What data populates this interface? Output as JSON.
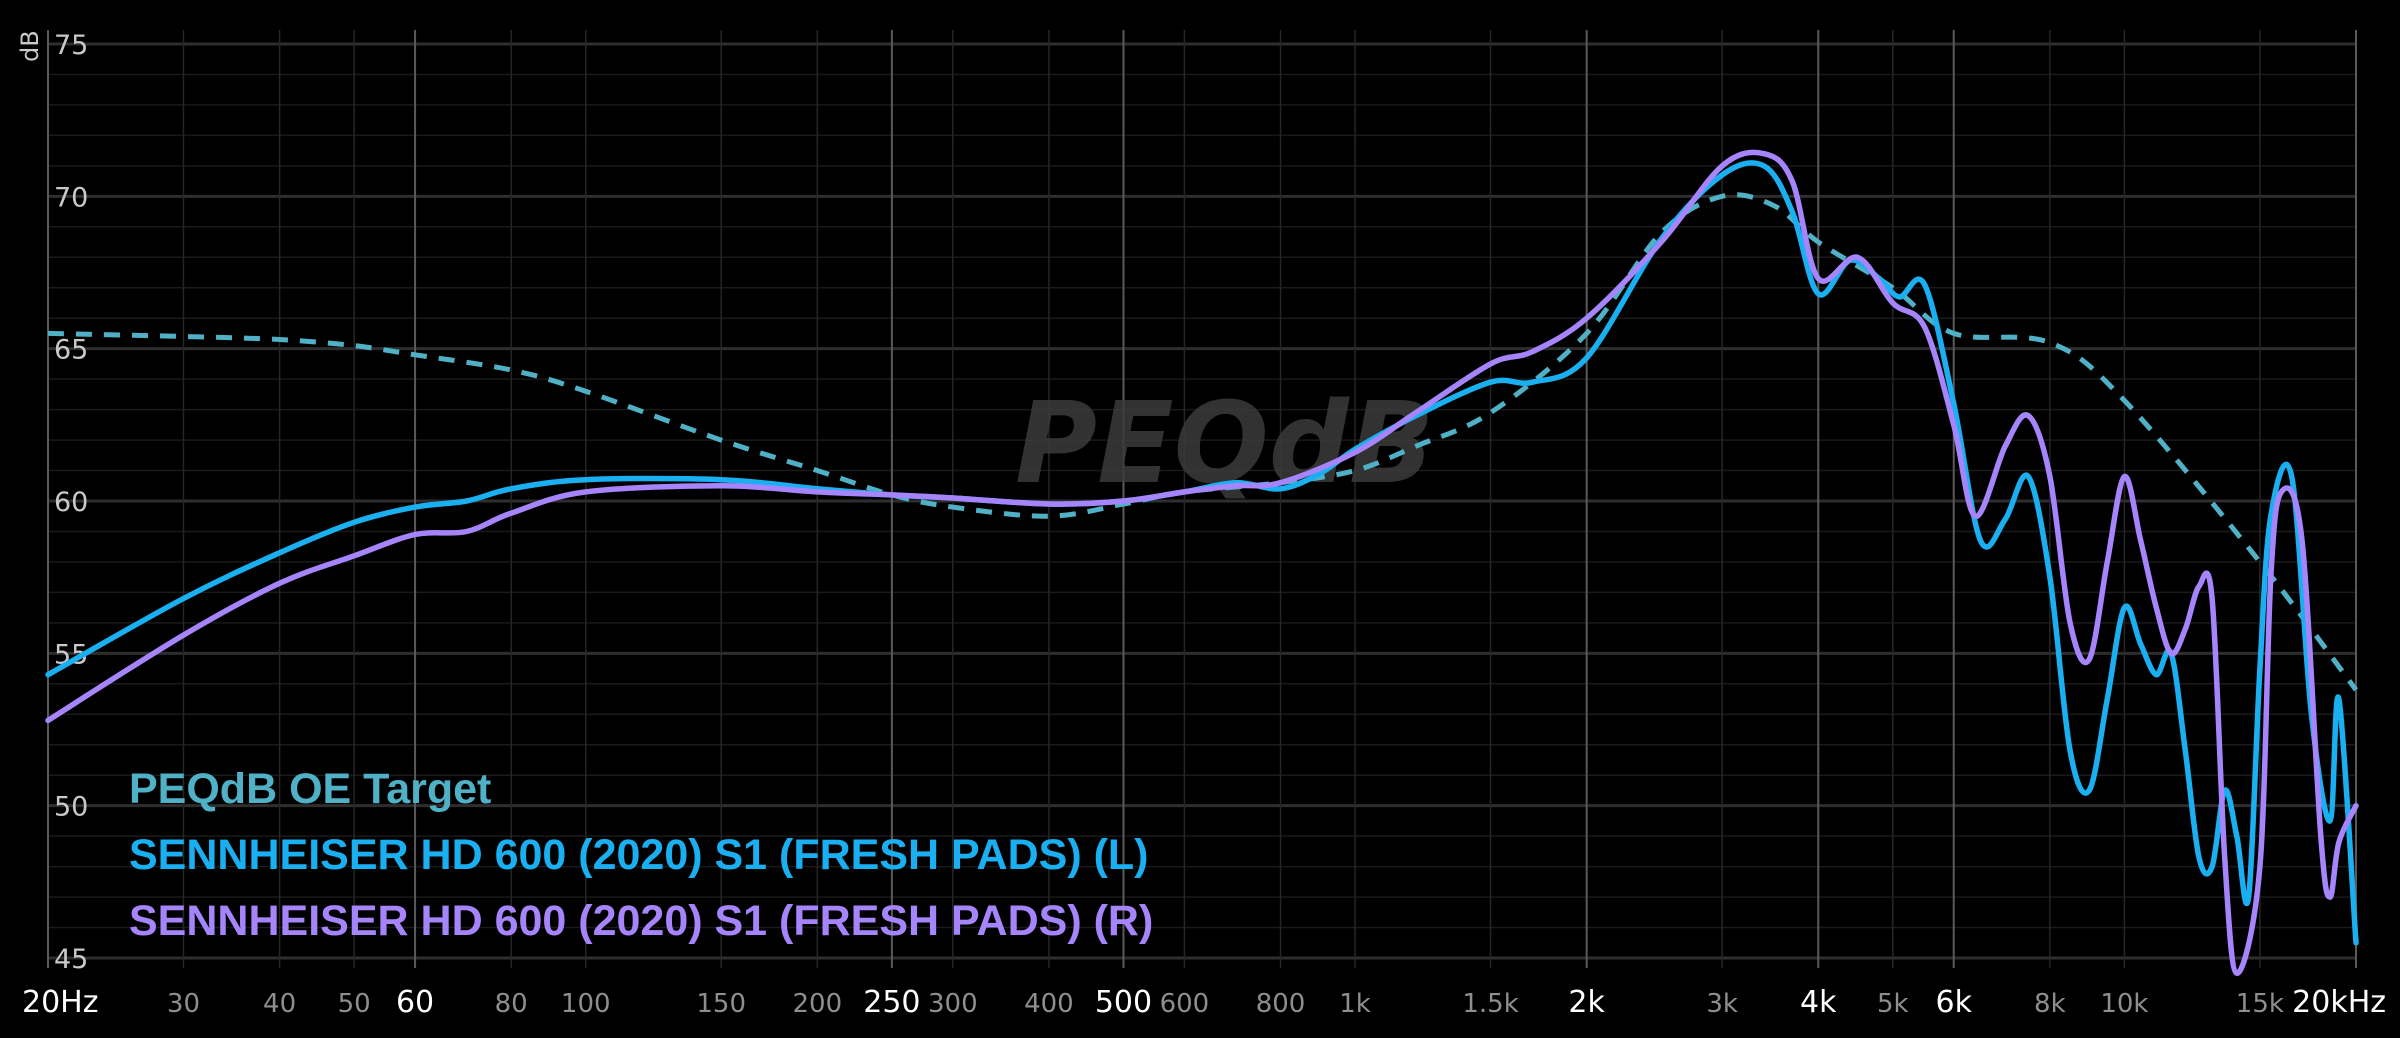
{
  "chart_data": {
    "type": "line",
    "title": "",
    "xlabel": "",
    "ylabel": "dB",
    "x_scale": "log",
    "xlim": [
      20,
      20000
    ],
    "ylim": [
      45,
      75
    ],
    "grid": true,
    "legend_position": "bottom-left",
    "watermark": "PEQdB",
    "y_ticks": [
      "45",
      "50",
      "55",
      "60",
      "65",
      "70",
      "75"
    ],
    "x_ticks": [
      {
        "value": 20,
        "label": "20Hz",
        "major": true
      },
      {
        "value": 30,
        "label": "30",
        "major": false
      },
      {
        "value": 40,
        "label": "40",
        "major": false
      },
      {
        "value": 50,
        "label": "50",
        "major": false
      },
      {
        "value": 60,
        "label": "60",
        "major": true
      },
      {
        "value": 80,
        "label": "80",
        "major": false
      },
      {
        "value": 100,
        "label": "100",
        "major": false
      },
      {
        "value": 150,
        "label": "150",
        "major": false
      },
      {
        "value": 200,
        "label": "200",
        "major": false
      },
      {
        "value": 250,
        "label": "250",
        "major": true
      },
      {
        "value": 300,
        "label": "300",
        "major": false
      },
      {
        "value": 400,
        "label": "400",
        "major": false
      },
      {
        "value": 500,
        "label": "500",
        "major": true
      },
      {
        "value": 600,
        "label": "600",
        "major": false
      },
      {
        "value": 800,
        "label": "800",
        "major": false
      },
      {
        "value": 1000,
        "label": "1k",
        "major": false
      },
      {
        "value": 1500,
        "label": "1.5k",
        "major": false
      },
      {
        "value": 2000,
        "label": "2k",
        "major": true
      },
      {
        "value": 3000,
        "label": "3k",
        "major": false
      },
      {
        "value": 4000,
        "label": "4k",
        "major": true
      },
      {
        "value": 5000,
        "label": "5k",
        "major": false
      },
      {
        "value": 6000,
        "label": "6k",
        "major": true
      },
      {
        "value": 8000,
        "label": "8k",
        "major": false
      },
      {
        "value": 10000,
        "label": "10k",
        "major": false
      },
      {
        "value": 15000,
        "label": "15k",
        "major": false
      },
      {
        "value": 20000,
        "label": "20kHz",
        "major": true
      }
    ],
    "series": [
      {
        "name": "PEQdB OE Target",
        "color": "#4fb0c6",
        "dashed": true,
        "points": [
          [
            20,
            65.5
          ],
          [
            30,
            65.4
          ],
          [
            40,
            65.3
          ],
          [
            50,
            65.1
          ],
          [
            60,
            64.8
          ],
          [
            80,
            64.3
          ],
          [
            100,
            63.6
          ],
          [
            150,
            62.0
          ],
          [
            200,
            61.0
          ],
          [
            250,
            60.2
          ],
          [
            300,
            59.8
          ],
          [
            400,
            59.5
          ],
          [
            500,
            59.9
          ],
          [
            600,
            60.3
          ],
          [
            800,
            60.6
          ],
          [
            1000,
            61.0
          ],
          [
            1200,
            61.8
          ],
          [
            1500,
            62.9
          ],
          [
            2000,
            65.5
          ],
          [
            2500,
            68.8
          ],
          [
            3000,
            70.0
          ],
          [
            3500,
            69.7
          ],
          [
            4000,
            68.5
          ],
          [
            5000,
            67.0
          ],
          [
            6000,
            65.5
          ],
          [
            8000,
            65.2
          ],
          [
            10000,
            63.3
          ],
          [
            15000,
            58.0
          ],
          [
            20000,
            53.8
          ]
        ]
      },
      {
        "name": "SENNHEISER HD 600 (2020) S1 (FRESH PADS) (L)",
        "color": "#1aaff0",
        "dashed": false,
        "points": [
          [
            20,
            54.3
          ],
          [
            30,
            56.8
          ],
          [
            40,
            58.3
          ],
          [
            50,
            59.3
          ],
          [
            60,
            59.8
          ],
          [
            70,
            60.0
          ],
          [
            80,
            60.4
          ],
          [
            100,
            60.7
          ],
          [
            150,
            60.7
          ],
          [
            200,
            60.4
          ],
          [
            250,
            60.2
          ],
          [
            300,
            60.1
          ],
          [
            400,
            59.9
          ],
          [
            500,
            60.0
          ],
          [
            600,
            60.3
          ],
          [
            700,
            60.6
          ],
          [
            800,
            60.4
          ],
          [
            900,
            60.9
          ],
          [
            1000,
            61.7
          ],
          [
            1200,
            62.8
          ],
          [
            1500,
            63.9
          ],
          [
            1700,
            63.9
          ],
          [
            2000,
            64.7
          ],
          [
            2500,
            68.6
          ],
          [
            3000,
            70.7
          ],
          [
            3400,
            71.0
          ],
          [
            3700,
            69.5
          ],
          [
            4000,
            66.8
          ],
          [
            4400,
            67.9
          ],
          [
            4800,
            67.3
          ],
          [
            5100,
            66.7
          ],
          [
            5500,
            67.1
          ],
          [
            6000,
            63.2
          ],
          [
            6500,
            58.7
          ],
          [
            7000,
            59.4
          ],
          [
            7500,
            60.8
          ],
          [
            8000,
            57.5
          ],
          [
            8500,
            51.8
          ],
          [
            9000,
            50.5
          ],
          [
            9500,
            53.5
          ],
          [
            10000,
            56.5
          ],
          [
            10500,
            55.3
          ],
          [
            11000,
            54.3
          ],
          [
            11500,
            55.0
          ],
          [
            12000,
            51.8
          ],
          [
            12500,
            48.3
          ],
          [
            13000,
            48.0
          ],
          [
            13500,
            50.5
          ],
          [
            14000,
            49.0
          ],
          [
            14500,
            47.0
          ],
          [
            15000,
            54.5
          ],
          [
            15500,
            59.5
          ],
          [
            16500,
            60.8
          ],
          [
            17500,
            53.0
          ],
          [
            18500,
            49.5
          ],
          [
            19000,
            53.5
          ],
          [
            20000,
            45.5
          ]
        ]
      },
      {
        "name": "SENNHEISER HD 600 (2020) S1 (FRESH PADS) (R)",
        "color": "#a684fc",
        "dashed": false,
        "points": [
          [
            20,
            52.8
          ],
          [
            30,
            55.6
          ],
          [
            40,
            57.3
          ],
          [
            50,
            58.2
          ],
          [
            60,
            58.9
          ],
          [
            70,
            59.0
          ],
          [
            80,
            59.6
          ],
          [
            100,
            60.3
          ],
          [
            150,
            60.5
          ],
          [
            200,
            60.3
          ],
          [
            250,
            60.2
          ],
          [
            300,
            60.1
          ],
          [
            400,
            59.9
          ],
          [
            500,
            60.0
          ],
          [
            600,
            60.3
          ],
          [
            700,
            60.5
          ],
          [
            800,
            60.6
          ],
          [
            1000,
            61.6
          ],
          [
            1200,
            62.9
          ],
          [
            1500,
            64.5
          ],
          [
            1700,
            64.9
          ],
          [
            2000,
            66.0
          ],
          [
            2500,
            68.5
          ],
          [
            3000,
            71.0
          ],
          [
            3400,
            71.4
          ],
          [
            3700,
            70.5
          ],
          [
            4000,
            67.3
          ],
          [
            4500,
            68.0
          ],
          [
            5000,
            66.5
          ],
          [
            5500,
            65.7
          ],
          [
            6000,
            62.5
          ],
          [
            6400,
            59.5
          ],
          [
            7000,
            61.8
          ],
          [
            7500,
            62.8
          ],
          [
            8000,
            60.8
          ],
          [
            8500,
            56.0
          ],
          [
            9000,
            54.8
          ],
          [
            9500,
            58.0
          ],
          [
            10000,
            60.8
          ],
          [
            10500,
            58.7
          ],
          [
            11000,
            56.5
          ],
          [
            11500,
            55.0
          ],
          [
            12000,
            55.8
          ],
          [
            12500,
            57.2
          ],
          [
            13000,
            56.8
          ],
          [
            13500,
            48.3
          ],
          [
            14000,
            44.5
          ],
          [
            15000,
            48.0
          ],
          [
            15500,
            57.5
          ],
          [
            16000,
            60.3
          ],
          [
            17000,
            58.8
          ],
          [
            18000,
            49.0
          ],
          [
            18500,
            47.0
          ],
          [
            19000,
            48.8
          ],
          [
            20000,
            50.0
          ]
        ]
      }
    ]
  }
}
